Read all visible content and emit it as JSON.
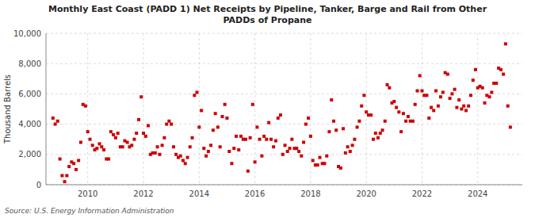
{
  "chart_data": {
    "type": "scatter",
    "title": "Monthly East Coast (PADD 1) Net Receipts by Pipeline, Tanker, Barge and Rail from Other\nPADDs of Propane",
    "y_label": "Thousand Barrels",
    "annotations": [
      "Source: U.S. Energy Information Administration"
    ],
    "color": "#cc0000",
    "marker": "square",
    "grid": true,
    "xlim": [
      2008.5,
      2025.6
    ],
    "xticks": [
      2010,
      2012,
      2014,
      2016,
      2018,
      2020,
      2022,
      2024
    ],
    "ylim": [
      0,
      10000
    ],
    "yticks": [
      0,
      {
        "value": 2000,
        "label": "2,000"
      },
      {
        "value": 4000,
        "label": "4,000"
      },
      {
        "value": 6000,
        "label": "6,000"
      },
      {
        "value": 8000,
        "label": "8,000"
      },
      {
        "value": 10000,
        "label": "10,000"
      }
    ],
    "x": [
      2008.75,
      2008.83,
      2008.92,
      2009.0,
      2009.08,
      2009.17,
      2009.25,
      2009.33,
      2009.42,
      2009.5,
      2009.58,
      2009.67,
      2009.75,
      2009.83,
      2009.92,
      2010.0,
      2010.08,
      2010.17,
      2010.25,
      2010.33,
      2010.42,
      2010.5,
      2010.58,
      2010.67,
      2010.75,
      2010.83,
      2010.92,
      2011.0,
      2011.08,
      2011.17,
      2011.25,
      2011.33,
      2011.42,
      2011.5,
      2011.58,
      2011.67,
      2011.75,
      2011.83,
      2011.92,
      2012.0,
      2012.08,
      2012.17,
      2012.25,
      2012.33,
      2012.42,
      2012.5,
      2012.58,
      2012.67,
      2012.75,
      2012.83,
      2012.92,
      2013.0,
      2013.08,
      2013.17,
      2013.25,
      2013.33,
      2013.42,
      2013.5,
      2013.58,
      2013.67,
      2013.75,
      2013.83,
      2013.92,
      2014.0,
      2014.08,
      2014.17,
      2014.25,
      2014.33,
      2014.42,
      2014.5,
      2014.58,
      2014.67,
      2014.75,
      2014.83,
      2014.92,
      2015.0,
      2015.08,
      2015.17,
      2015.25,
      2015.33,
      2015.42,
      2015.5,
      2015.58,
      2015.67,
      2015.75,
      2015.83,
      2015.92,
      2016.0,
      2016.08,
      2016.17,
      2016.25,
      2016.33,
      2016.42,
      2016.5,
      2016.58,
      2016.67,
      2016.75,
      2016.83,
      2016.92,
      2017.0,
      2017.08,
      2017.17,
      2017.25,
      2017.33,
      2017.42,
      2017.5,
      2017.58,
      2017.67,
      2017.75,
      2017.83,
      2017.92,
      2018.0,
      2018.08,
      2018.17,
      2018.25,
      2018.33,
      2018.42,
      2018.5,
      2018.58,
      2018.67,
      2018.75,
      2018.83,
      2018.92,
      2019.0,
      2019.08,
      2019.17,
      2019.25,
      2019.33,
      2019.42,
      2019.5,
      2019.58,
      2019.67,
      2019.75,
      2019.83,
      2019.92,
      2020.0,
      2020.08,
      2020.17,
      2020.25,
      2020.33,
      2020.42,
      2020.5,
      2020.58,
      2020.67,
      2020.75,
      2020.83,
      2020.92,
      2021.0,
      2021.08,
      2021.17,
      2021.25,
      2021.33,
      2021.42,
      2021.5,
      2021.58,
      2021.67,
      2021.75,
      2021.83,
      2021.92,
      2022.0,
      2022.08,
      2022.17,
      2022.25,
      2022.33,
      2022.42,
      2022.5,
      2022.58,
      2022.67,
      2022.75,
      2022.83,
      2022.92,
      2023.0,
      2023.08,
      2023.17,
      2023.25,
      2023.33,
      2023.42,
      2023.5,
      2023.58,
      2023.67,
      2023.75,
      2023.83,
      2023.92,
      2024.0,
      2024.08,
      2024.17,
      2024.25,
      2024.33,
      2024.42,
      2024.5,
      2024.58,
      2024.67,
      2024.75,
      2024.83,
      2024.92,
      2025.0,
      2025.08,
      2025.17
    ],
    "values": [
      4400,
      4000,
      4200,
      1700,
      600,
      200,
      600,
      1200,
      1500,
      1400,
      1000,
      1600,
      2800,
      5300,
      5200,
      3500,
      3000,
      2600,
      2300,
      2400,
      2700,
      2500,
      2300,
      1700,
      1700,
      3500,
      3300,
      3100,
      3400,
      2500,
      2500,
      2900,
      2800,
      2500,
      2600,
      3000,
      3400,
      4300,
      5800,
      3400,
      3200,
      3900,
      2000,
      2100,
      2100,
      2500,
      2000,
      2600,
      3100,
      4000,
      4200,
      4000,
      2500,
      2000,
      1800,
      1900,
      1600,
      1400,
      1800,
      2500,
      3100,
      5900,
      6100,
      3800,
      4900,
      2400,
      1900,
      2200,
      2600,
      3600,
      4700,
      3800,
      2500,
      4500,
      5300,
      4400,
      2200,
      1400,
      2400,
      3200,
      2300,
      3200,
      3000,
      3000,
      900,
      3100,
      5300,
      1500,
      3800,
      3000,
      1900,
      3200,
      3000,
      4100,
      3000,
      2500,
      2900,
      4400,
      4600,
      2000,
      2600,
      2200,
      2400,
      3000,
      2400,
      2400,
      2200,
      1900,
      2800,
      4000,
      4400,
      3200,
      1600,
      1300,
      1300,
      1800,
      1400,
      1400,
      1900,
      3500,
      5600,
      4200,
      3600,
      1200,
      1100,
      3700,
      2100,
      2500,
      2200,
      2600,
      3000,
      3800,
      4200,
      5200,
      5900,
      4800,
      4600,
      4600,
      3000,
      3400,
      3100,
      3400,
      3600,
      4200,
      6600,
      6400,
      5400,
      5500,
      5100,
      4800,
      3500,
      4700,
      4200,
      4500,
      4200,
      4200,
      5300,
      6200,
      7200,
      6200,
      5900,
      5900,
      4400,
      5100,
      4900,
      6200,
      5200,
      5800,
      6100,
      7400,
      7300,
      5700,
      6000,
      6300,
      5100,
      5600,
      5000,
      5200,
      4900,
      5200,
      5900,
      6900,
      7600,
      6400,
      6500,
      6400,
      5400,
      5900,
      5800,
      6100,
      6700,
      6700,
      7700,
      7600,
      7300,
      9300,
      5200,
      3800
    ]
  }
}
